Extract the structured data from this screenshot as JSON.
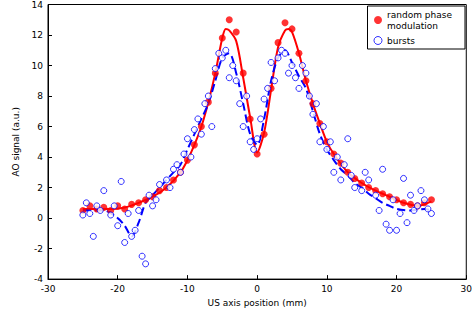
{
  "chart_data": {
    "type": "scatter",
    "x_label": "US axis position (mm)",
    "y_label": "AO signal (a.u.)",
    "xlim": [
      -30,
      30
    ],
    "xticks": [
      -30,
      -20,
      -10,
      0,
      10,
      20,
      30
    ],
    "ylim": [
      -4,
      14
    ],
    "yticks": [
      -4,
      -2,
      0,
      2,
      4,
      6,
      8,
      10,
      12,
      14
    ],
    "grid": false,
    "legend": "top-right",
    "series": [
      {
        "name": "random phase modulation",
        "color": "#ff0000",
        "marker": "filled circle",
        "line_style": "solid",
        "x": [
          -25,
          -24,
          -23,
          -22,
          -21,
          -20,
          -19,
          -18,
          -17,
          -16,
          -15,
          -14,
          -13,
          -12,
          -11,
          -10,
          -9,
          -8,
          -7,
          -6,
          -5,
          -4,
          -3,
          -2,
          -1,
          0,
          1,
          2,
          3,
          4,
          5,
          6,
          7,
          8,
          9,
          10,
          11,
          12,
          13,
          14,
          15,
          16,
          17,
          18,
          19,
          20,
          21,
          22,
          23,
          24,
          25
        ],
        "values": [
          0.5,
          0.8,
          0.6,
          0.7,
          0.5,
          0.8,
          0.6,
          0.9,
          1.0,
          1.2,
          1.4,
          1.8,
          2.0,
          2.5,
          3.0,
          3.8,
          4.8,
          6.0,
          7.6,
          9.5,
          11.8,
          13.0,
          12.2,
          9.5,
          6.5,
          4.2,
          5.5,
          8.5,
          11.5,
          12.8,
          12.4,
          10.8,
          9.0,
          7.5,
          6.2,
          5.0,
          4.2,
          3.6,
          3.0,
          2.6,
          2.3,
          2.0,
          1.8,
          1.6,
          1.4,
          1.2,
          1.0,
          0.9,
          0.8,
          1.0,
          1.2
        ],
        "fit_x": [
          -25,
          -23,
          -21,
          -19,
          -17,
          -15,
          -13,
          -11,
          -10,
          -9,
          -8,
          -7,
          -6,
          -5,
          -4.5,
          -4,
          -3,
          -2,
          -1,
          0,
          1,
          2,
          3,
          4,
          4.5,
          5,
          6,
          7,
          8,
          9,
          10,
          11,
          13,
          15,
          17,
          19,
          21,
          23,
          25
        ],
        "fit_values": [
          0.6,
          0.6,
          0.6,
          0.7,
          1.0,
          1.4,
          2.0,
          3.0,
          3.8,
          4.8,
          6.0,
          7.6,
          9.5,
          11.8,
          12.4,
          12.3,
          11.6,
          9.2,
          6.6,
          4.3,
          5.6,
          8.4,
          11.2,
          12.3,
          12.4,
          12.2,
          10.8,
          9.0,
          7.5,
          6.2,
          5.0,
          4.2,
          3.0,
          2.3,
          1.8,
          1.4,
          1.0,
          0.8,
          1.1
        ]
      },
      {
        "name": "bursts",
        "color": "#0000ff",
        "marker": "open circle",
        "line_style": "dashed",
        "x": [
          -25,
          -24.5,
          -24,
          -23.5,
          -23,
          -22.5,
          -22,
          -21,
          -20.5,
          -20,
          -19.5,
          -19,
          -18.5,
          -18,
          -17.5,
          -17,
          -16.5,
          -16,
          -15.5,
          -15,
          -14.5,
          -14,
          -13,
          -12.5,
          -12,
          -11.5,
          -11,
          -10.5,
          -10,
          -9.5,
          -9,
          -8.5,
          -8,
          -7.5,
          -7,
          -6.5,
          -6,
          -5.5,
          -5,
          -4.5,
          -4,
          -3.5,
          -3,
          -2.5,
          -2,
          -1.5,
          -1,
          -0.5,
          0,
          0.5,
          1,
          1.5,
          2,
          2.5,
          3,
          3.5,
          4,
          4.5,
          5,
          5.5,
          6,
          6.5,
          7,
          7.5,
          8,
          8.5,
          9,
          9.5,
          10,
          10.5,
          11,
          11.5,
          12,
          12.5,
          13,
          13.5,
          14,
          15,
          15.5,
          16,
          17,
          17.5,
          18,
          18.5,
          19,
          19.5,
          20,
          20.5,
          21,
          21.5,
          22,
          22.5,
          23,
          23.5,
          24,
          24.5,
          25
        ],
        "values": [
          0.2,
          1.0,
          0.3,
          -1.2,
          0.8,
          0.5,
          1.8,
          0.2,
          0.8,
          -0.5,
          2.4,
          -1.6,
          0.3,
          -1.2,
          -0.8,
          0.5,
          -2.5,
          -3.0,
          1.5,
          0.8,
          1.2,
          2.2,
          2.5,
          2.0,
          3.2,
          3.5,
          3.0,
          4.2,
          5.2,
          4.0,
          5.8,
          6.5,
          5.5,
          7.5,
          8.0,
          6.0,
          9.8,
          10.8,
          10.5,
          11.0,
          9.2,
          10.0,
          9.0,
          7.5,
          6.0,
          8.0,
          5.0,
          4.5,
          5.2,
          6.5,
          7.8,
          8.5,
          10.2,
          9.0,
          10.5,
          11.0,
          10.8,
          9.5,
          10.0,
          9.2,
          8.5,
          10.0,
          9.5,
          8.0,
          6.8,
          7.5,
          5.0,
          6.0,
          4.5,
          5.0,
          3.0,
          4.0,
          2.5,
          3.5,
          5.2,
          2.8,
          2.0,
          1.8,
          3.0,
          2.5,
          1.5,
          0.5,
          3.2,
          -0.4,
          -0.8,
          1.2,
          -0.8,
          0.3,
          2.6,
          -0.3,
          1.5,
          0.5,
          0.8,
          1.8,
          1.2,
          0.6,
          0.3
        ],
        "fit_x": [
          -25,
          -22,
          -20,
          -19,
          -18,
          -17,
          -16,
          -15,
          -14,
          -13,
          -12,
          -11,
          -10,
          -9,
          -8,
          -7,
          -6,
          -5,
          -4,
          -3,
          -2,
          -1,
          0,
          1,
          2,
          3,
          4,
          5,
          6,
          7,
          8,
          9,
          10,
          11,
          12,
          13,
          14,
          15,
          16,
          17,
          18,
          19,
          20,
          22,
          24,
          25
        ],
        "fit_values": [
          0.5,
          0.5,
          0.0,
          -0.5,
          -1.2,
          -0.3,
          1.0,
          1.5,
          2.0,
          2.5,
          3.0,
          3.5,
          4.5,
          5.5,
          6.5,
          7.5,
          9.0,
          10.5,
          10.8,
          9.5,
          7.5,
          5.5,
          4.8,
          6.5,
          9.0,
          10.5,
          11.0,
          10.2,
          9.3,
          8.5,
          7.0,
          5.5,
          4.5,
          3.8,
          3.2,
          2.8,
          2.3,
          2.0,
          1.6,
          1.3,
          1.0,
          0.8,
          0.6,
          0.5,
          0.6,
          0.5
        ]
      }
    ]
  }
}
